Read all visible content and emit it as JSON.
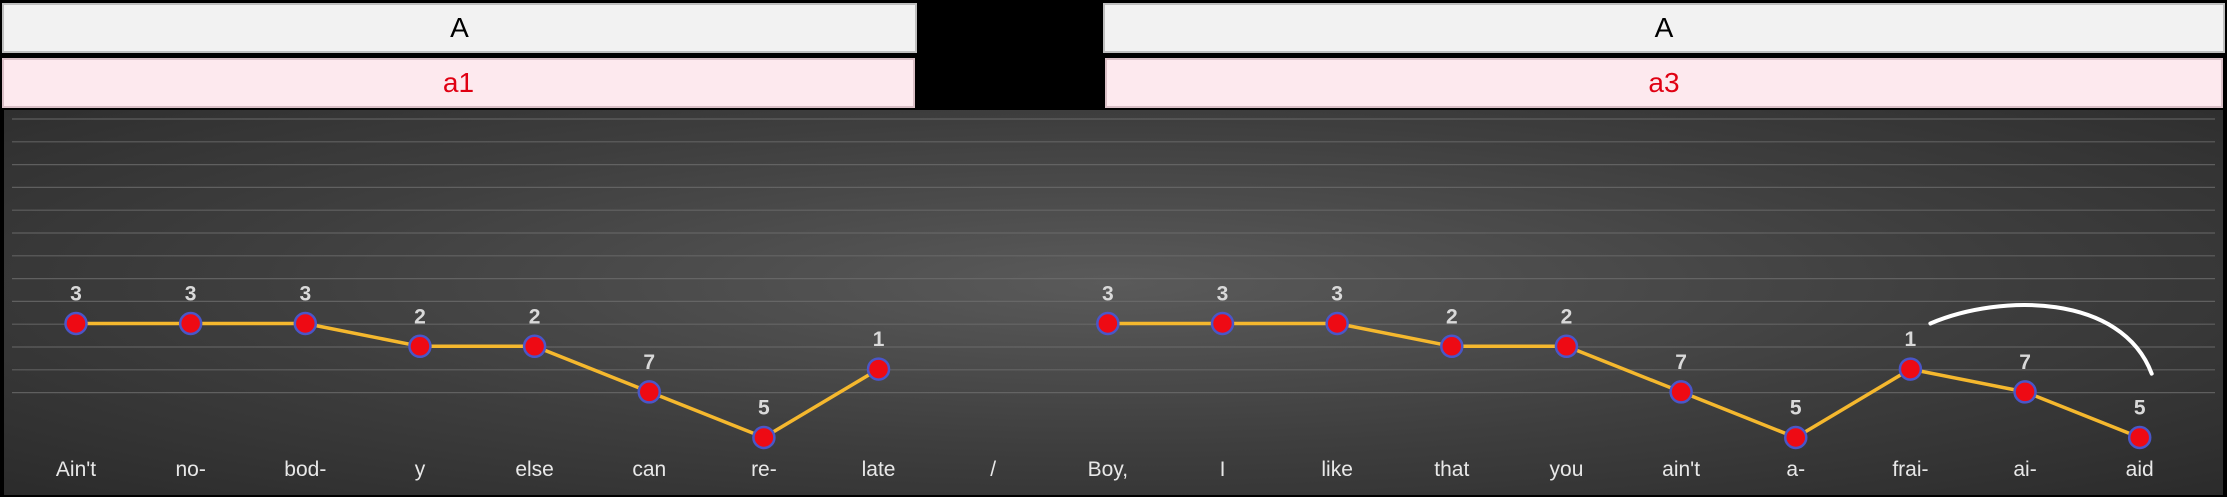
{
  "sections": [
    {
      "label": "A",
      "sublabel": "a1"
    },
    {
      "label": "A",
      "sublabel": "a3"
    }
  ],
  "chart_data": {
    "type": "line",
    "categories": [
      "Ain't",
      "no-",
      "bod-",
      "y",
      "else",
      "can",
      "re-",
      "late",
      "/",
      "Boy,",
      "I",
      "like",
      "that",
      "you",
      "ain't",
      "a-",
      "frai-",
      "ai-",
      "aid"
    ],
    "series": [
      {
        "values": [
          3,
          3,
          3,
          2,
          2,
          7,
          5,
          1,
          null,
          3,
          3,
          3,
          2,
          2,
          7,
          5,
          1,
          7,
          5
        ],
        "levels": [
          0,
          0,
          0,
          -1,
          -1,
          -3,
          -5,
          -2,
          null,
          0,
          0,
          0,
          -1,
          -1,
          -3,
          -5,
          -2,
          -3,
          -5
        ]
      }
    ],
    "line_color": "#f5b82e",
    "marker_color": "#ee0a14",
    "marker_edge": "#4a56c8",
    "grid": true,
    "slur": {
      "from": 16,
      "to": 18
    }
  }
}
